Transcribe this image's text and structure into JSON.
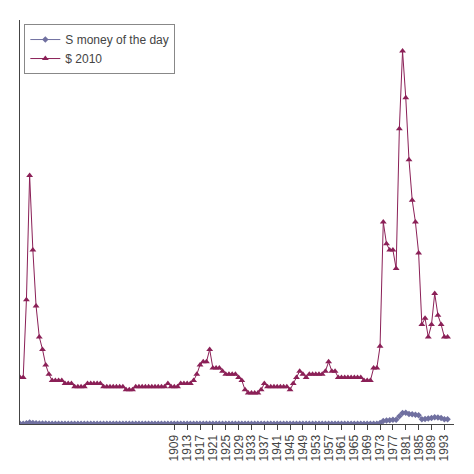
{
  "chart_data": {
    "type": "line",
    "x": [
      1861,
      1862,
      1863,
      1864,
      1865,
      1866,
      1867,
      1868,
      1869,
      1870,
      1871,
      1872,
      1873,
      1874,
      1875,
      1876,
      1877,
      1878,
      1879,
      1880,
      1881,
      1882,
      1883,
      1884,
      1885,
      1886,
      1887,
      1888,
      1889,
      1890,
      1891,
      1892,
      1893,
      1894,
      1895,
      1896,
      1897,
      1898,
      1899,
      1900,
      1901,
      1902,
      1903,
      1904,
      1905,
      1906,
      1907,
      1908,
      1909,
      1910,
      1911,
      1912,
      1913,
      1914,
      1915,
      1916,
      1917,
      1918,
      1919,
      1920,
      1921,
      1922,
      1923,
      1924,
      1925,
      1926,
      1927,
      1928,
      1929,
      1930,
      1931,
      1932,
      1933,
      1934,
      1935,
      1936,
      1937,
      1938,
      1939,
      1940,
      1941,
      1942,
      1943,
      1944,
      1945,
      1946,
      1947,
      1948,
      1949,
      1950,
      1951,
      1952,
      1953,
      1954,
      1955,
      1956,
      1957,
      1958,
      1959,
      1960,
      1961,
      1962,
      1963,
      1964,
      1965,
      1966,
      1967,
      1968,
      1969,
      1970,
      1971,
      1972,
      1973,
      1974,
      1975,
      1976,
      1977,
      1978,
      1979,
      1980,
      1981,
      1982,
      1983,
      1984,
      1985,
      1986,
      1987,
      1988,
      1989,
      1990,
      1991,
      1992,
      1993,
      1994
    ],
    "series": [
      {
        "name": "S money of the day",
        "color": "#7070a0",
        "marker": "diamond",
        "values": [
          0.1,
          0.1,
          0.25,
          0.5,
          0.35,
          0.25,
          0.2,
          0.18,
          0.15,
          0.12,
          0.11,
          0.11,
          0.11,
          0.11,
          0.11,
          0.11,
          0.1,
          0.1,
          0.1,
          0.1,
          0.1,
          0.1,
          0.1,
          0.1,
          0.1,
          0.1,
          0.1,
          0.1,
          0.1,
          0.1,
          0.1,
          0.1,
          0.1,
          0.1,
          0.1,
          0.1,
          0.1,
          0.1,
          0.1,
          0.1,
          0.1,
          0.1,
          0.1,
          0.1,
          0.1,
          0.1,
          0.1,
          0.1,
          0.1,
          0.1,
          0.1,
          0.1,
          0.1,
          0.1,
          0.1,
          0.1,
          0.1,
          0.1,
          0.1,
          0.12,
          0.1,
          0.1,
          0.1,
          0.1,
          0.1,
          0.1,
          0.1,
          0.1,
          0.1,
          0.1,
          0.1,
          0.1,
          0.1,
          0.1,
          0.1,
          0.1,
          0.1,
          0.1,
          0.1,
          0.1,
          0.1,
          0.1,
          0.1,
          0.1,
          0.1,
          0.1,
          0.1,
          0.1,
          0.1,
          0.1,
          0.1,
          0.1,
          0.1,
          0.1,
          0.1,
          0.1,
          0.1,
          0.1,
          0.1,
          0.1,
          0.1,
          0.1,
          0.1,
          0.1,
          0.1,
          0.1,
          0.1,
          0.1,
          0.1,
          0.1,
          0.1,
          0.1,
          0.3,
          1.0,
          1.1,
          1.2,
          1.35,
          1.4,
          2.5,
          3.5,
          3.6,
          3.2,
          3.1,
          3.0,
          2.8,
          1.5,
          1.6,
          1.8,
          1.9,
          2.2,
          2.1,
          1.9,
          1.5,
          1.5
        ]
      },
      {
        "name": "$ 2010",
        "color": "#8b2057",
        "marker": "triangle-up",
        "values": [
          15,
          15,
          40,
          80,
          56,
          38,
          28,
          24,
          19,
          16,
          14,
          14,
          14,
          14,
          13,
          13,
          13,
          12,
          12,
          12,
          12,
          13,
          13,
          13,
          13,
          13,
          12,
          12,
          12,
          12,
          12,
          12,
          12,
          11,
          11,
          11,
          12,
          12,
          12,
          12,
          12,
          12,
          12,
          12,
          12,
          12,
          13,
          12,
          12,
          12,
          13,
          13,
          13,
          13,
          14,
          16,
          19,
          20,
          20,
          24,
          18,
          18,
          18,
          17,
          16,
          16,
          16,
          16,
          15,
          14,
          11,
          10,
          10,
          10,
          10,
          11,
          13,
          12,
          12,
          12,
          12,
          12,
          12,
          12,
          11,
          13,
          15,
          17,
          16,
          15,
          16,
          16,
          16,
          16,
          16,
          17,
          20,
          17,
          17,
          15,
          15,
          15,
          15,
          15,
          15,
          15,
          15,
          14,
          14,
          14,
          18,
          18,
          25,
          65,
          58,
          56,
          56,
          50,
          95,
          120,
          105,
          85,
          72,
          65,
          55,
          32,
          34,
          28,
          32,
          42,
          35,
          32,
          28,
          28
        ]
      }
    ],
    "xlim": [
      1861,
      1996
    ],
    "xticks": [
      1909,
      1913,
      1917,
      1921,
      1925,
      1929,
      1933,
      1937,
      1941,
      1945,
      1949,
      1953,
      1957,
      1961,
      1965,
      1969,
      1973,
      1977,
      1981,
      1985,
      1989,
      1993
    ],
    "ylim": [
      0,
      130
    ],
    "tick_labels": "x",
    "grid": false,
    "legend": "upper left"
  }
}
